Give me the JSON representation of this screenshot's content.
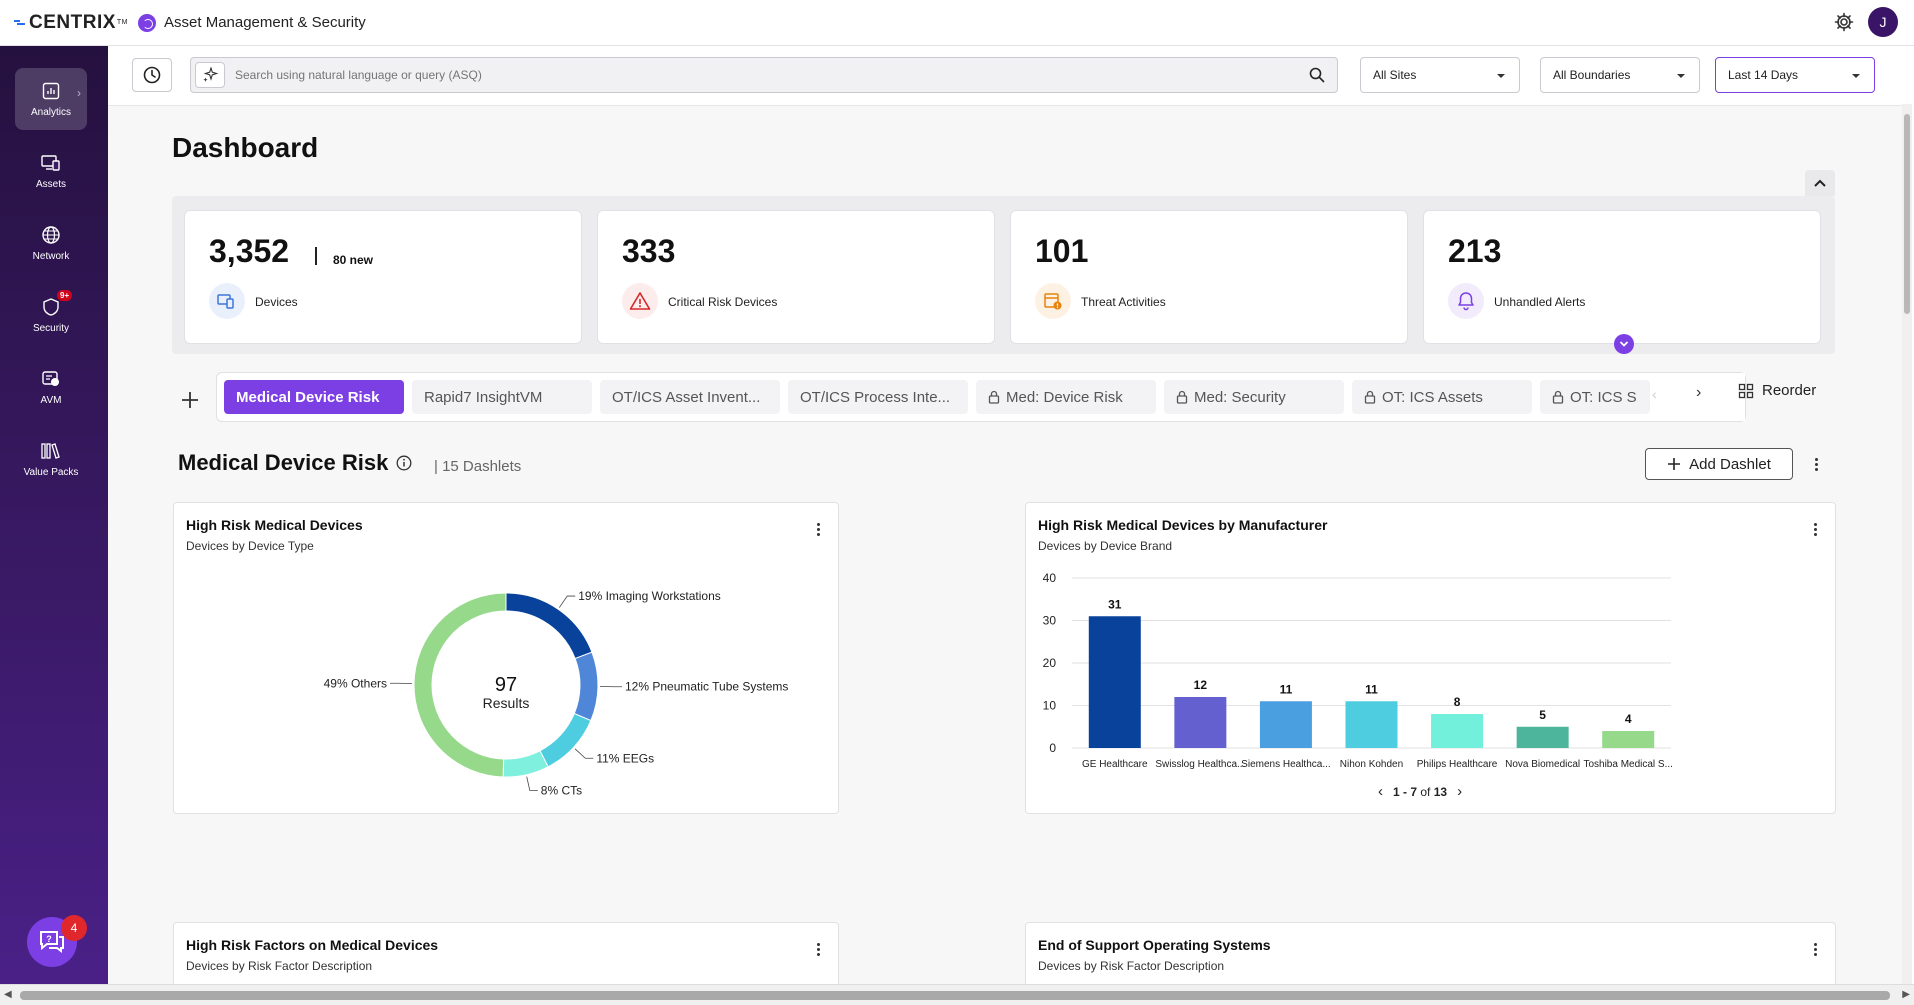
{
  "header": {
    "brand": "CENTRIX",
    "brand_mark": "TM",
    "app_title": "Asset Management & Security",
    "avatar_initial": "J"
  },
  "sidebar": {
    "items": [
      {
        "label": "Analytics",
        "icon": "analytics-icon",
        "active": true
      },
      {
        "label": "Assets",
        "icon": "assets-icon"
      },
      {
        "label": "Network",
        "icon": "globe-icon"
      },
      {
        "label": "Security",
        "icon": "shield-icon",
        "badge": "9+"
      },
      {
        "label": "AVM",
        "icon": "avm-icon"
      },
      {
        "label": "Value Packs",
        "icon": "books-icon"
      }
    ],
    "help_badge": "4"
  },
  "toolbar": {
    "search_placeholder": "Search using natural language or query (ASQ)",
    "sites": "All Sites",
    "boundaries": "All Boundaries",
    "range": "Last 14 Days"
  },
  "page": {
    "title": "Dashboard"
  },
  "kpis": [
    {
      "value": "3,352",
      "new": "80 new",
      "label": "Devices",
      "icon": "devices-icon"
    },
    {
      "value": "333",
      "label": "Critical Risk Devices",
      "icon": "warning-icon"
    },
    {
      "value": "101",
      "label": "Threat Activities",
      "icon": "threat-icon"
    },
    {
      "value": "213",
      "label": "Unhandled Alerts",
      "icon": "bell-icon"
    }
  ],
  "tabs": [
    {
      "label": "Medical Device Risk",
      "active": true,
      "locked": false
    },
    {
      "label": "Rapid7 InsightVM",
      "locked": false
    },
    {
      "label": "OT/ICS Asset Invent...",
      "locked": false
    },
    {
      "label": "OT/ICS Process Inte...",
      "locked": false
    },
    {
      "label": "Med: Device Risk",
      "locked": true
    },
    {
      "label": "Med: Security",
      "locked": true
    },
    {
      "label": "OT: ICS Assets",
      "locked": true
    },
    {
      "label": "OT: ICS S",
      "locked": true
    }
  ],
  "reorder_label": "Reorder",
  "section": {
    "title": "Medical Device Risk",
    "count": "| 15 Dashlets",
    "add_label": "Add Dashlet"
  },
  "cards": {
    "donut": {
      "title": "High Risk Medical Devices",
      "subtitle": "Devices by Device Type",
      "center_value": "97",
      "center_label": "Results"
    },
    "bars": {
      "title": "High Risk Medical Devices by Manufacturer",
      "subtitle": "Devices by Device Brand",
      "pager_range": "1 - 7",
      "pager_of": "of",
      "pager_total": "13"
    },
    "factors": {
      "title": "High Risk Factors on Medical Devices",
      "subtitle": "Devices by Risk Factor Description"
    },
    "eos": {
      "title": "End of Support Operating Systems",
      "subtitle": "Devices by Risk Factor Description"
    }
  },
  "chart_data": [
    {
      "type": "pie",
      "title": "High Risk Medical Devices",
      "total": 97,
      "slices": [
        {
          "label": "Imaging Workstations",
          "percent": 19,
          "color": "#08429a"
        },
        {
          "label": "Pneumatic Tube Systems",
          "percent": 12,
          "color": "#4f86d8"
        },
        {
          "label": "EEGs",
          "percent": 11,
          "color": "#4fcde0"
        },
        {
          "label": "CTs",
          "percent": 8,
          "color": "#7ef0dd"
        },
        {
          "label": "Others",
          "percent": 49,
          "color": "#96d98a"
        }
      ]
    },
    {
      "type": "bar",
      "title": "High Risk Medical Devices by Manufacturer",
      "categories": [
        "GE Healthcare",
        "Swisslog Healthca...",
        "Siemens Healthca...",
        "Nihon Kohden",
        "Philips Healthcare",
        "Nova Biomedical",
        "Toshiba Medical S..."
      ],
      "values": [
        31,
        12,
        11,
        11,
        8,
        5,
        4
      ],
      "colors": [
        "#08429a",
        "#6460cf",
        "#4a9fe0",
        "#4ecde0",
        "#72f0dc",
        "#4db59b",
        "#96d98a"
      ],
      "ylim": [
        0,
        40
      ],
      "yticks": [
        0,
        10,
        20,
        30,
        40
      ]
    }
  ]
}
